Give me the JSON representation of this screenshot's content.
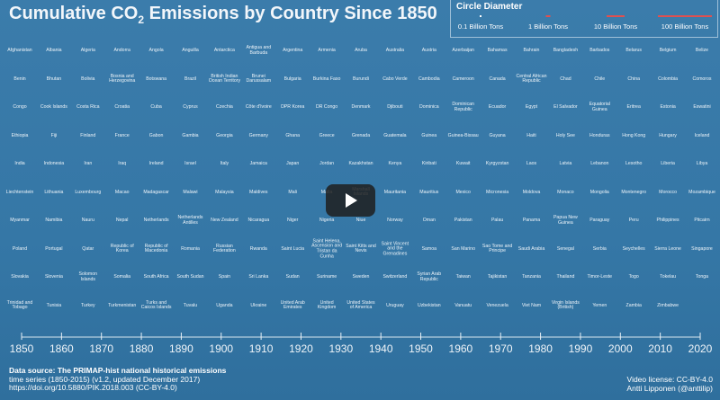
{
  "title": {
    "text": "Cumulative CO",
    "subscript": "2",
    "rest": " Emissions by Country Since 1850"
  },
  "legend": {
    "title": "Circle Diameter",
    "items": [
      "0.1 Billion Tons",
      "1 Billion Tons",
      "10 Billion Tons",
      "100 Billion Tons"
    ]
  },
  "countries": [
    [
      "Afghanistan",
      "Albania",
      "Algeria",
      "Andorra",
      "Angola",
      "Anguilla",
      "Antarctica",
      "Antigua and Barbuda",
      "Argentina",
      "Armenia",
      "Aruba",
      "Australia",
      "Austria",
      "Azerbaijan",
      "Bahamas",
      "Bahrain",
      "Bangladesh",
      "Barbados",
      "Belarus",
      "Belgium",
      "Belize"
    ],
    [
      "Benin",
      "Bhutan",
      "Bolivia",
      "Bosnia and Herzegovina",
      "Botswana",
      "Brazil",
      "British Indian Ocean Territory",
      "Brunei Darussalam",
      "Bulgaria",
      "Burkina Faso",
      "Burundi",
      "Cabo Verde",
      "Cambodia",
      "Cameroon",
      "Canada",
      "Central African Republic",
      "Chad",
      "Chile",
      "China",
      "Colombia",
      "Comoros"
    ],
    [
      "Congo",
      "Cook Islands",
      "Costa Rica",
      "Croatia",
      "Cuba",
      "Cyprus",
      "Czechia",
      "Côte d'Ivoire",
      "DPR Korea",
      "DR Congo",
      "Denmark",
      "Djibouti",
      "Dominica",
      "Dominican Republic",
      "Ecuador",
      "Egypt",
      "El Salvador",
      "Equatorial Guinea",
      "Eritrea",
      "Estonia",
      "Eswatini"
    ],
    [
      "Ethiopia",
      "Fiji",
      "Finland",
      "France",
      "Gabon",
      "Gambia",
      "Georgia",
      "Germany",
      "Ghana",
      "Greece",
      "Grenada",
      "Guatemala",
      "Guinea",
      "Guinea-Bissau",
      "Guyana",
      "Haiti",
      "Holy See",
      "Honduras",
      "Hong Kong",
      "Hungary",
      "Iceland"
    ],
    [
      "India",
      "Indonesia",
      "Iran",
      "Iraq",
      "Ireland",
      "Israel",
      "Italy",
      "Jamaica",
      "Japan",
      "Jordan",
      "Kazakhstan",
      "Kenya",
      "Kiribati",
      "Kuwait",
      "Kyrgyzstan",
      "Laos",
      "Latvia",
      "Lebanon",
      "Lesotho",
      "Liberia",
      "Libya"
    ],
    [
      "Liechtenstein",
      "Lithuania",
      "Luxembourg",
      "Macao",
      "Madagascar",
      "Malawi",
      "Malaysia",
      "Maldives",
      "Mali",
      "Malta",
      "Marshall Islands",
      "Mauritania",
      "Mauritius",
      "Mexico",
      "Micronesia",
      "Moldova",
      "Monaco",
      "Mongolia",
      "Montenegro",
      "Morocco",
      "Mozambique"
    ],
    [
      "Myanmar",
      "Namibia",
      "Nauru",
      "Nepal",
      "Netherlands",
      "Netherlands Antilles",
      "New Zealand",
      "Nicaragua",
      "Niger",
      "Nigeria",
      "Niue",
      "Norway",
      "Oman",
      "Pakistan",
      "Palau",
      "Panama",
      "Papua New Guinea",
      "Paraguay",
      "Peru",
      "Philippines",
      "Pitcairn"
    ],
    [
      "Poland",
      "Portugal",
      "Qatar",
      "Republic of Korea",
      "Republic of Macedonia",
      "Romania",
      "Russian Federation",
      "Rwanda",
      "Saint Lucia",
      "Saint Helena, Ascension and Tristan da Cunha",
      "Saint Kitts and Nevis",
      "Saint Vincent and the Grenadines",
      "Samoa",
      "San Marino",
      "Sao Tome and Principe",
      "Saudi Arabia",
      "Senegal",
      "Serbia",
      "Seychelles",
      "Sierra Leone",
      "Singapore"
    ],
    [
      "Slovakia",
      "Slovenia",
      "Solomon Islands",
      "Somalia",
      "South Africa",
      "South Sudan",
      "Spain",
      "Sri Lanka",
      "Sudan",
      "Suriname",
      "Sweden",
      "Switzerland",
      "Syrian Arab Republic",
      "Taiwan",
      "Tajikistan",
      "Tanzania",
      "Thailand",
      "Timor-Leste",
      "Togo",
      "Tokelau",
      "Tonga"
    ],
    [
      "Trinidad and Tobago",
      "Tunisia",
      "Turkey",
      "Turkmenistan",
      "Turks and Caicos Islands",
      "Tuvalu",
      "Uganda",
      "Ukraine",
      "United Arab Emirates",
      "United Kingdom",
      "United States of America",
      "Uruguay",
      "Uzbekistan",
      "Vanuatu",
      "Venezuela",
      "Viet Nam",
      "Virgin Islands (British)",
      "Yemen",
      "Zambia",
      "Zimbabwe"
    ]
  ],
  "timeline": {
    "range": [
      1850,
      2020
    ],
    "ticks": [
      1850,
      1860,
      1870,
      1880,
      1890,
      1900,
      1910,
      1920,
      1930,
      1940,
      1950,
      1960,
      1970,
      1980,
      1990,
      2000,
      2010,
      2020
    ]
  },
  "footer": {
    "source": [
      "Data source:  The PRIMAP-hist national historical emissions",
      "time series (1850-2015) (v1.2, updated December 2017)",
      "https://doi.org/10.5880/PIK.2018.003 (CC-BY-4.0)"
    ],
    "license": [
      "Video license: CC-BY-4.0",
      "Antti Lipponen (@anttilip)"
    ]
  }
}
